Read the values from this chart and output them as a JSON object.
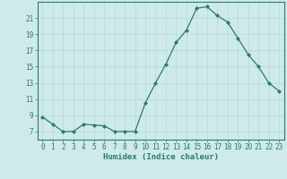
{
  "x": [
    0,
    1,
    2,
    3,
    4,
    5,
    6,
    7,
    8,
    9,
    10,
    11,
    12,
    13,
    14,
    15,
    16,
    17,
    18,
    19,
    20,
    21,
    22,
    23
  ],
  "y": [
    8.8,
    7.9,
    7.0,
    7.0,
    7.9,
    7.8,
    7.7,
    7.0,
    7.0,
    7.0,
    10.5,
    13.0,
    15.3,
    18.0,
    19.5,
    22.2,
    22.4,
    21.3,
    20.5,
    18.5,
    16.5,
    15.0,
    13.0,
    12.0
  ],
  "xlabel": "Humidex (Indice chaleur)",
  "ylim": [
    6,
    23
  ],
  "xlim": [
    -0.5,
    23.5
  ],
  "yticks": [
    7,
    9,
    11,
    13,
    15,
    17,
    19,
    21
  ],
  "xticks": [
    0,
    1,
    2,
    3,
    4,
    5,
    6,
    7,
    8,
    9,
    10,
    11,
    12,
    13,
    14,
    15,
    16,
    17,
    18,
    19,
    20,
    21,
    22,
    23
  ],
  "line_color": "#2d7a6e",
  "marker_color": "#2d7a6e",
  "bg_color": "#ceeaea",
  "grid_color": "#b8d8d8",
  "axis_color": "#2d7a6e",
  "label_color": "#2d7a6e",
  "xlabel_fontsize": 6.5,
  "tick_fontsize": 5.5
}
